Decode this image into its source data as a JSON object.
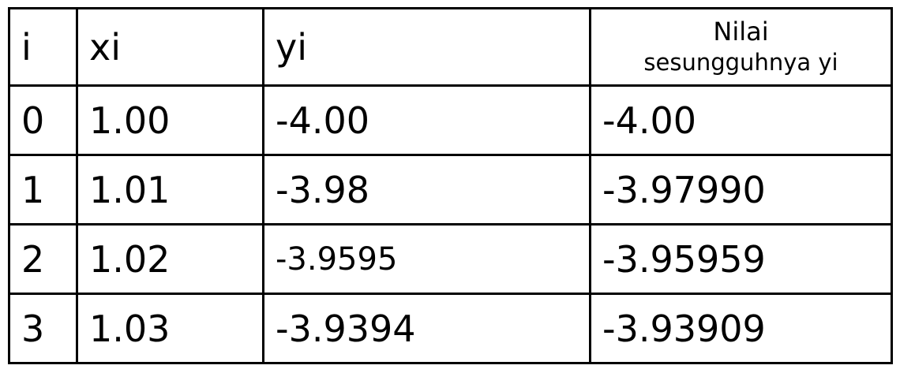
{
  "table": {
    "headers": {
      "i": "i",
      "xi": "xi",
      "yi": "yi",
      "actual_line1": "Nilai",
      "actual_line2": "sesungguhnya yi"
    },
    "rows": [
      {
        "i": "0",
        "xi": "1.00",
        "yi": "-4.00",
        "actual": "-4.00"
      },
      {
        "i": "1",
        "xi": "1.01",
        "yi": "-3.98",
        "actual": "-3.97990"
      },
      {
        "i": "2",
        "xi": "1.02",
        "yi": "-3.9595",
        "actual": "-3.95959"
      },
      {
        "i": "3",
        "xi": "1.03",
        "yi": "-3.9394",
        "actual": "-3.93909"
      }
    ]
  }
}
